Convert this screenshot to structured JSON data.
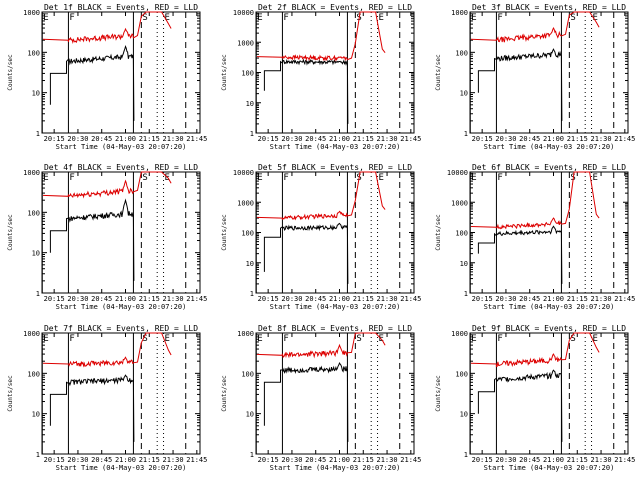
{
  "chart_data": [
    {
      "type": "line",
      "title": "Det 1f BLACK = Events, RED = LLD",
      "xlabel": "Start Time (04-May-03 20:07:20)",
      "ylabel": "Counts/sec",
      "yscale": "log",
      "ylim": [
        1,
        1000
      ],
      "x_ticks": [
        "20:15",
        "20:30",
        "20:45",
        "21:00",
        "21:15",
        "21:30",
        "21:45"
      ],
      "y_ticks": [
        "1",
        "10",
        "100",
        "1000"
      ],
      "markers": [
        {
          "label": "E",
          "x": "20:07:30",
          "style": "solid"
        },
        {
          "label": "F",
          "x": "20:24",
          "style": "solid"
        },
        {
          "label": "",
          "x": "21:05",
          "style": "solid"
        },
        {
          "label": "S",
          "x": "21:10",
          "style": "dashed"
        },
        {
          "label": "",
          "x": "21:20",
          "style": "dotted"
        },
        {
          "label": "E",
          "x": "21:24",
          "style": "dotted"
        },
        {
          "label": "",
          "x": "21:38",
          "style": "dashed"
        }
      ],
      "series": [
        {
          "color": "#000000",
          "level": 60,
          "level_end": 80,
          "bump": [
            21.0,
            140
          ],
          "start": [
            20.21,
            5
          ]
        },
        {
          "color": "#dd0000",
          "level": 200,
          "level_end": 260,
          "bump": [
            21.0,
            380
          ],
          "peak": [
            21.33,
            4000
          ]
        }
      ]
    },
    {
      "type": "line",
      "title": "Det 2f BLACK = Events, RED = LLD",
      "xlabel": "Start Time (04-May-03 20:07:20)",
      "ylabel": "Counts/sec",
      "yscale": "log",
      "ylim": [
        1,
        10000
      ],
      "x_ticks": [
        "20:15",
        "20:30",
        "20:45",
        "21:00",
        "21:15",
        "21:30",
        "21:45"
      ],
      "y_ticks": [
        "1",
        "10",
        "100",
        "1000",
        "10000"
      ],
      "markers": [
        {
          "label": "E",
          "x": "20:07:30",
          "style": "solid"
        },
        {
          "label": "F",
          "x": "20:24",
          "style": "solid"
        },
        {
          "label": "",
          "x": "21:05",
          "style": "solid"
        },
        {
          "label": "S",
          "x": "21:10",
          "style": "dashed"
        },
        {
          "label": "",
          "x": "21:20",
          "style": "dotted"
        },
        {
          "label": "E",
          "x": "21:24",
          "style": "dotted"
        },
        {
          "label": "",
          "x": "21:38",
          "style": "dashed"
        }
      ],
      "series": [
        {
          "color": "#000000",
          "level": 230,
          "level_end": 220,
          "bump": [
            21.0,
            230
          ],
          "start": [
            20.21,
            25
          ]
        },
        {
          "color": "#dd0000",
          "level": 320,
          "level_end": 300,
          "bump": [
            21.0,
            320
          ],
          "peak": [
            21.33,
            15000
          ]
        }
      ]
    },
    {
      "type": "line",
      "title": "Det 3f BLACK = Events, RED = LLD",
      "xlabel": "Start Time (04-May-03 20:07:20)",
      "ylabel": "Counts/sec",
      "yscale": "log",
      "ylim": [
        1,
        1000
      ],
      "x_ticks": [
        "20:15",
        "20:30",
        "20:45",
        "21:00",
        "21:15",
        "21:30",
        "21:45"
      ],
      "y_ticks": [
        "1",
        "10",
        "100",
        "1000"
      ],
      "markers": [
        {
          "label": "E",
          "x": "20:07:30",
          "style": "solid"
        },
        {
          "label": "F",
          "x": "20:24",
          "style": "solid"
        },
        {
          "label": "",
          "x": "21:05",
          "style": "solid"
        },
        {
          "label": "S",
          "x": "21:10",
          "style": "dashed"
        },
        {
          "label": "",
          "x": "21:20",
          "style": "dotted"
        },
        {
          "label": "E",
          "x": "21:24",
          "style": "dotted"
        },
        {
          "label": "",
          "x": "21:38",
          "style": "dashed"
        }
      ],
      "series": [
        {
          "color": "#000000",
          "level": 70,
          "level_end": 90,
          "bump": [
            21.0,
            120
          ],
          "start": [
            20.21,
            10
          ]
        },
        {
          "color": "#dd0000",
          "level": 200,
          "level_end": 280,
          "bump": [
            21.0,
            400
          ],
          "peak": [
            21.33,
            3000
          ]
        }
      ]
    },
    {
      "type": "line",
      "title": "Det 4f BLACK = Events, RED = LLD",
      "xlabel": "Start Time (04-May-03 20:07:20)",
      "ylabel": "Counts/sec",
      "yscale": "log",
      "ylim": [
        1,
        1000
      ],
      "x_ticks": [
        "20:15",
        "20:30",
        "20:45",
        "21:00",
        "21:15",
        "21:30",
        "21:45"
      ],
      "y_ticks": [
        "1",
        "10",
        "100",
        "1000"
      ],
      "markers": [
        {
          "label": "E",
          "x": "20:07:30",
          "style": "solid"
        },
        {
          "label": "F",
          "x": "20:24",
          "style": "solid"
        },
        {
          "label": "",
          "x": "21:05",
          "style": "solid"
        },
        {
          "label": "S",
          "x": "21:10",
          "style": "dashed"
        },
        {
          "label": "",
          "x": "21:20",
          "style": "dotted"
        },
        {
          "label": "E",
          "x": "21:24",
          "style": "dotted"
        },
        {
          "label": "",
          "x": "21:38",
          "style": "dashed"
        }
      ],
      "series": [
        {
          "color": "#000000",
          "level": 70,
          "level_end": 95,
          "bump": [
            21.0,
            200
          ],
          "start": [
            20.21,
            10
          ]
        },
        {
          "color": "#dd0000",
          "level": 250,
          "level_end": 350,
          "bump": [
            21.0,
            600
          ],
          "peak": [
            21.33,
            3000
          ]
        }
      ]
    },
    {
      "type": "line",
      "title": "Det 5f BLACK = Events, RED = LLD",
      "xlabel": "Start Time (04-May-03 20:07:20)",
      "ylabel": "Counts/sec",
      "yscale": "log",
      "ylim": [
        1,
        10000
      ],
      "x_ticks": [
        "20:15",
        "20:30",
        "20:45",
        "21:00",
        "21:15",
        "21:30",
        "21:45"
      ],
      "y_ticks": [
        "1",
        "10",
        "100",
        "1000",
        "10000"
      ],
      "markers": [
        {
          "label": "E",
          "x": "20:07:30",
          "style": "solid"
        },
        {
          "label": "F",
          "x": "20:24",
          "style": "solid"
        },
        {
          "label": "",
          "x": "21:05",
          "style": "solid"
        },
        {
          "label": "S",
          "x": "21:10",
          "style": "dashed"
        },
        {
          "label": "",
          "x": "21:20",
          "style": "dotted"
        },
        {
          "label": "E",
          "x": "21:24",
          "style": "dotted"
        },
        {
          "label": "",
          "x": "21:38",
          "style": "dashed"
        }
      ],
      "series": [
        {
          "color": "#000000",
          "level": 140,
          "level_end": 150,
          "bump": [
            21.0,
            200
          ],
          "start": [
            20.21,
            5
          ]
        },
        {
          "color": "#dd0000",
          "level": 300,
          "level_end": 380,
          "bump": [
            21.0,
            500
          ],
          "peak": [
            21.33,
            15000
          ]
        }
      ]
    },
    {
      "type": "line",
      "title": "Det 6f BLACK = Events, RED = LLD",
      "xlabel": "Start Time (04-May-03 20:07:20)",
      "ylabel": "Counts/sec",
      "yscale": "log",
      "ylim": [
        1,
        10000
      ],
      "x_ticks": [
        "20:15",
        "20:30",
        "20:45",
        "21:00",
        "21:15",
        "21:30",
        "21:45"
      ],
      "y_ticks": [
        "1",
        "10",
        "100",
        "1000",
        "10000"
      ],
      "markers": [
        {
          "label": "E",
          "x": "20:07:30",
          "style": "solid"
        },
        {
          "label": "F",
          "x": "20:24",
          "style": "solid"
        },
        {
          "label": "",
          "x": "21:05",
          "style": "solid"
        },
        {
          "label": "S",
          "x": "21:10",
          "style": "dashed"
        },
        {
          "label": "",
          "x": "21:20",
          "style": "dotted"
        },
        {
          "label": "E",
          "x": "21:24",
          "style": "dotted"
        },
        {
          "label": "",
          "x": "21:38",
          "style": "dashed"
        }
      ],
      "series": [
        {
          "color": "#000000",
          "level": 90,
          "level_end": 110,
          "bump": [
            21.0,
            160
          ],
          "start": [
            20.21,
            20
          ]
        },
        {
          "color": "#dd0000",
          "level": 150,
          "level_end": 200,
          "bump": [
            21.0,
            300
          ],
          "peak": [
            21.33,
            15000
          ]
        }
      ]
    },
    {
      "type": "line",
      "title": "Det 7f BLACK = Events, RED = LLD",
      "xlabel": "Start Time (04-May-03 20:07:20)",
      "ylabel": "Counts/sec",
      "yscale": "log",
      "ylim": [
        1,
        1000
      ],
      "x_ticks": [
        "20:15",
        "20:30",
        "20:45",
        "21:00",
        "21:15",
        "21:30",
        "21:45"
      ],
      "y_ticks": [
        "1",
        "10",
        "100",
        "1000"
      ],
      "markers": [
        {
          "label": "E",
          "x": "20:07:30",
          "style": "solid"
        },
        {
          "label": "F",
          "x": "20:24",
          "style": "solid"
        },
        {
          "label": "",
          "x": "21:05",
          "style": "solid"
        },
        {
          "label": "S",
          "x": "21:10",
          "style": "dashed"
        },
        {
          "label": "",
          "x": "21:20",
          "style": "dotted"
        },
        {
          "label": "E",
          "x": "21:24",
          "style": "dotted"
        },
        {
          "label": "",
          "x": "21:38",
          "style": "dashed"
        }
      ],
      "series": [
        {
          "color": "#000000",
          "level": 60,
          "level_end": 70,
          "bump": [
            21.0,
            90
          ],
          "start": [
            20.21,
            5
          ]
        },
        {
          "color": "#dd0000",
          "level": 170,
          "level_end": 190,
          "bump": [
            21.0,
            250
          ],
          "peak": [
            21.33,
            3000
          ]
        }
      ]
    },
    {
      "type": "line",
      "title": "Det 8f BLACK = Events, RED = LLD",
      "xlabel": "Start Time (04-May-03 20:07:20)",
      "ylabel": "Counts/sec",
      "yscale": "log",
      "ylim": [
        1,
        1000
      ],
      "x_ticks": [
        "20:15",
        "20:30",
        "20:45",
        "21:00",
        "21:15",
        "21:30",
        "21:45"
      ],
      "y_ticks": [
        "1",
        "10",
        "100",
        "1000"
      ],
      "markers": [
        {
          "label": "E",
          "x": "20:07:30",
          "style": "solid"
        },
        {
          "label": "F",
          "x": "20:24",
          "style": "solid"
        },
        {
          "label": "",
          "x": "21:05",
          "style": "solid"
        },
        {
          "label": "S",
          "x": "21:10",
          "style": "dashed"
        },
        {
          "label": "",
          "x": "21:20",
          "style": "dotted"
        },
        {
          "label": "E",
          "x": "21:24",
          "style": "dotted"
        },
        {
          "label": "",
          "x": "21:38",
          "style": "dashed"
        }
      ],
      "series": [
        {
          "color": "#000000",
          "level": 120,
          "level_end": 130,
          "bump": [
            21.0,
            180
          ],
          "start": [
            20.21,
            5
          ]
        },
        {
          "color": "#dd0000",
          "level": 280,
          "level_end": 330,
          "bump": [
            21.0,
            500
          ],
          "peak": [
            21.33,
            3000
          ]
        }
      ]
    },
    {
      "type": "line",
      "title": "Det 9f BLACK = Events, RED = LLD",
      "xlabel": "Start Time (04-May-03 20:07:20)",
      "ylabel": "Counts/sec",
      "yscale": "log",
      "ylim": [
        1,
        1000
      ],
      "x_ticks": [
        "20:15",
        "20:30",
        "20:45",
        "21:00",
        "21:15",
        "21:30",
        "21:45"
      ],
      "y_ticks": [
        "1",
        "10",
        "100",
        "1000"
      ],
      "markers": [
        {
          "label": "E",
          "x": "20:07:30",
          "style": "solid"
        },
        {
          "label": "F",
          "x": "20:24",
          "style": "solid"
        },
        {
          "label": "",
          "x": "21:05",
          "style": "solid"
        },
        {
          "label": "S",
          "x": "21:10",
          "style": "dashed"
        },
        {
          "label": "",
          "x": "21:20",
          "style": "dotted"
        },
        {
          "label": "E",
          "x": "21:24",
          "style": "dotted"
        },
        {
          "label": "",
          "x": "21:38",
          "style": "dashed"
        }
      ],
      "series": [
        {
          "color": "#000000",
          "level": 70,
          "level_end": 90,
          "bump": [
            21.0,
            120
          ],
          "start": [
            20.21,
            10
          ]
        },
        {
          "color": "#dd0000",
          "level": 170,
          "level_end": 220,
          "bump": [
            21.0,
            300
          ],
          "peak": [
            21.33,
            3000
          ]
        }
      ]
    }
  ]
}
